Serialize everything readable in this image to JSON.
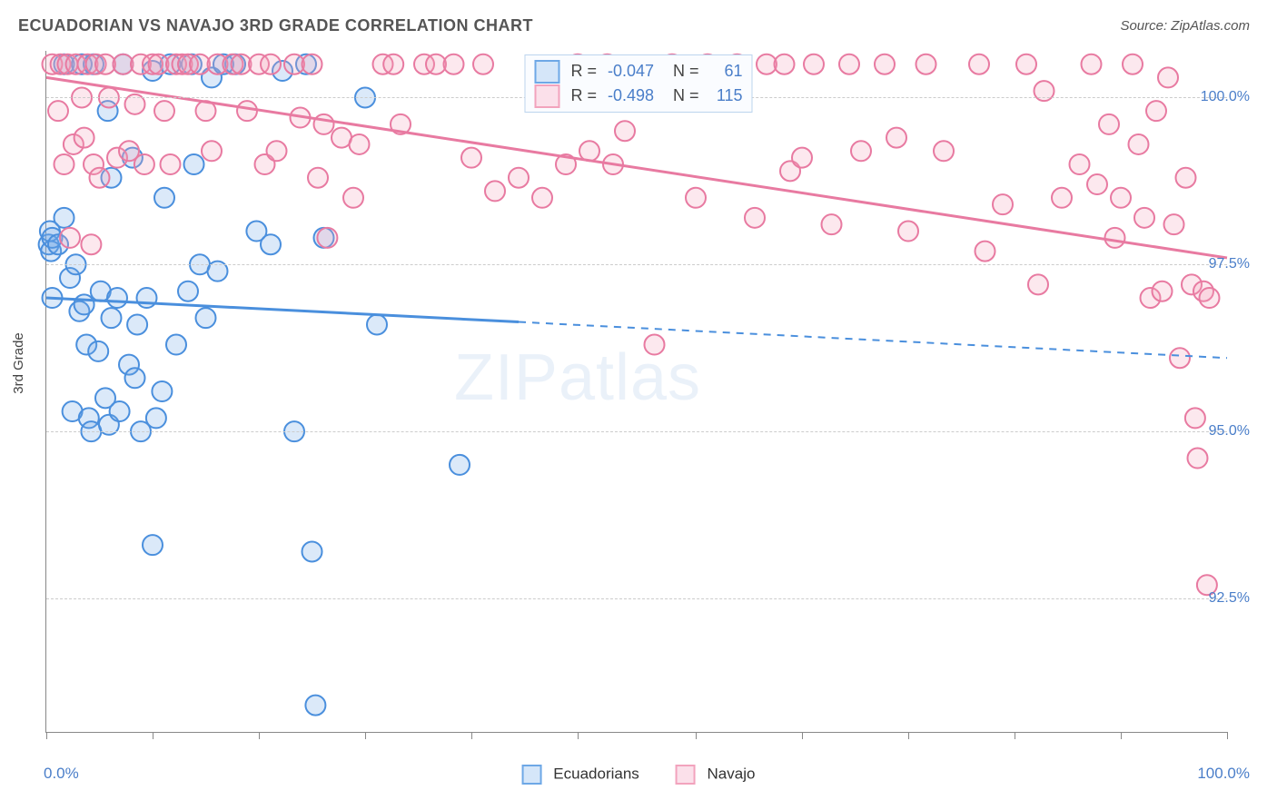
{
  "title": "ECUADORIAN VS NAVAJO 3RD GRADE CORRELATION CHART",
  "source": "Source: ZipAtlas.com",
  "watermark": {
    "part1": "ZIP",
    "part2": "atlas"
  },
  "chart": {
    "type": "scatter",
    "ylabel": "3rd Grade",
    "xlim": [
      0,
      100
    ],
    "ylim": [
      90.5,
      100.7
    ],
    "background_color": "#ffffff",
    "grid_color": "#cccccc",
    "axis_color": "#888888",
    "ytick_labels": [
      "92.5%",
      "95.0%",
      "97.5%",
      "100.0%"
    ],
    "ytick_values": [
      92.5,
      95.0,
      97.5,
      100.0
    ],
    "ytick_color": "#4a7ec9",
    "xtick_positions": [
      0,
      9,
      18,
      27,
      36,
      45,
      55,
      64,
      73,
      82,
      91,
      100
    ],
    "xtick_label_left": "0.0%",
    "xtick_label_right": "100.0%",
    "marker_radius": 11,
    "marker_stroke_width": 2,
    "marker_fill_opacity": 0.25,
    "series": [
      {
        "name": "Ecuadorians",
        "color": "#6ea8e6",
        "stroke": "#4a8fdd",
        "R": "-0.047",
        "N": "61",
        "trend": {
          "x1": 0,
          "y1": 97.0,
          "x2": 100,
          "y2": 96.1,
          "data_xmax": 40,
          "line_width": 3
        },
        "points": [
          [
            0.2,
            97.8
          ],
          [
            0.3,
            98.0
          ],
          [
            0.4,
            97.7
          ],
          [
            0.5,
            97.9
          ],
          [
            0.5,
            97.0
          ],
          [
            1.0,
            97.8
          ],
          [
            1.5,
            98.2
          ],
          [
            1.5,
            100.5
          ],
          [
            2.0,
            97.3
          ],
          [
            2.2,
            95.3
          ],
          [
            2.5,
            97.5
          ],
          [
            2.8,
            96.8
          ],
          [
            3.0,
            100.5
          ],
          [
            3.2,
            96.9
          ],
          [
            3.4,
            96.3
          ],
          [
            3.6,
            95.2
          ],
          [
            3.8,
            95.0
          ],
          [
            4.0,
            100.5
          ],
          [
            4.4,
            96.2
          ],
          [
            4.6,
            97.1
          ],
          [
            5.0,
            95.5
          ],
          [
            5.2,
            99.8
          ],
          [
            5.3,
            95.1
          ],
          [
            5.5,
            96.7
          ],
          [
            5.5,
            98.8
          ],
          [
            6.0,
            97.0
          ],
          [
            6.2,
            95.3
          ],
          [
            6.5,
            100.5
          ],
          [
            7.0,
            96.0
          ],
          [
            7.3,
            99.1
          ],
          [
            7.5,
            95.8
          ],
          [
            7.7,
            96.6
          ],
          [
            8.0,
            95.0
          ],
          [
            8.5,
            97.0
          ],
          [
            9.0,
            93.3
          ],
          [
            9.0,
            100.4
          ],
          [
            9.3,
            95.2
          ],
          [
            9.8,
            95.6
          ],
          [
            10.0,
            98.5
          ],
          [
            10.5,
            100.5
          ],
          [
            11.0,
            96.3
          ],
          [
            12.0,
            97.1
          ],
          [
            12.5,
            99.0
          ],
          [
            12.3,
            100.5
          ],
          [
            13.0,
            97.5
          ],
          [
            13.5,
            96.7
          ],
          [
            14.0,
            100.3
          ],
          [
            14.5,
            97.4
          ],
          [
            15.0,
            100.5
          ],
          [
            16.0,
            100.5
          ],
          [
            17.8,
            98.0
          ],
          [
            19.0,
            97.8
          ],
          [
            20.0,
            100.4
          ],
          [
            21.0,
            95.0
          ],
          [
            22.0,
            100.5
          ],
          [
            22.5,
            93.2
          ],
          [
            22.8,
            90.9
          ],
          [
            23.5,
            97.9
          ],
          [
            27.0,
            100.0
          ],
          [
            28.0,
            96.6
          ],
          [
            35.0,
            94.5
          ]
        ]
      },
      {
        "name": "Navajo",
        "color": "#f2a3bd",
        "stroke": "#e87aa1",
        "R": "-0.498",
        "N": "115",
        "trend": {
          "x1": 0,
          "y1": 100.3,
          "x2": 100,
          "y2": 97.6,
          "data_xmax": 100,
          "line_width": 3
        },
        "points": [
          [
            0.5,
            100.5
          ],
          [
            1.0,
            99.8
          ],
          [
            1.2,
            100.5
          ],
          [
            1.5,
            99.0
          ],
          [
            1.8,
            100.5
          ],
          [
            2.0,
            97.9
          ],
          [
            2.3,
            99.3
          ],
          [
            2.5,
            100.5
          ],
          [
            3.0,
            100.0
          ],
          [
            3.2,
            99.4
          ],
          [
            3.5,
            100.5
          ],
          [
            3.8,
            97.8
          ],
          [
            4.0,
            99.0
          ],
          [
            4.2,
            100.5
          ],
          [
            4.5,
            98.8
          ],
          [
            5.0,
            100.5
          ],
          [
            5.3,
            100.0
          ],
          [
            6.0,
            99.1
          ],
          [
            6.5,
            100.5
          ],
          [
            7.0,
            99.2
          ],
          [
            7.5,
            99.9
          ],
          [
            8.0,
            100.5
          ],
          [
            8.3,
            99.0
          ],
          [
            9.0,
            100.5
          ],
          [
            9.5,
            100.5
          ],
          [
            10.0,
            99.8
          ],
          [
            10.5,
            99.0
          ],
          [
            11.0,
            100.5
          ],
          [
            11.5,
            100.5
          ],
          [
            12.0,
            100.5
          ],
          [
            13.0,
            100.5
          ],
          [
            13.5,
            99.8
          ],
          [
            14.0,
            99.2
          ],
          [
            14.5,
            100.5
          ],
          [
            15.8,
            100.5
          ],
          [
            16.5,
            100.5
          ],
          [
            17.0,
            99.8
          ],
          [
            18.0,
            100.5
          ],
          [
            18.5,
            99.0
          ],
          [
            19.0,
            100.5
          ],
          [
            19.5,
            99.2
          ],
          [
            21.0,
            100.5
          ],
          [
            21.5,
            99.7
          ],
          [
            22.5,
            100.5
          ],
          [
            23.0,
            98.8
          ],
          [
            23.5,
            99.6
          ],
          [
            23.8,
            97.9
          ],
          [
            25.0,
            99.4
          ],
          [
            26.0,
            98.5
          ],
          [
            26.5,
            99.3
          ],
          [
            28.5,
            100.5
          ],
          [
            29.4,
            100.5
          ],
          [
            30.0,
            99.6
          ],
          [
            32.0,
            100.5
          ],
          [
            33.0,
            100.5
          ],
          [
            34.5,
            100.5
          ],
          [
            36.0,
            99.1
          ],
          [
            37.0,
            100.5
          ],
          [
            38.0,
            98.6
          ],
          [
            40.0,
            98.8
          ],
          [
            42.0,
            98.5
          ],
          [
            44.0,
            99.0
          ],
          [
            45.0,
            100.5
          ],
          [
            46.0,
            99.2
          ],
          [
            47.5,
            100.5
          ],
          [
            48.0,
            99.0
          ],
          [
            49.0,
            99.5
          ],
          [
            51.5,
            96.3
          ],
          [
            53.0,
            100.5
          ],
          [
            55.0,
            98.5
          ],
          [
            56.0,
            100.5
          ],
          [
            58.5,
            100.5
          ],
          [
            60.0,
            98.2
          ],
          [
            61.0,
            100.5
          ],
          [
            62.5,
            100.5
          ],
          [
            63.0,
            98.9
          ],
          [
            64.0,
            99.1
          ],
          [
            65.0,
            100.5
          ],
          [
            66.5,
            98.1
          ],
          [
            68.0,
            100.5
          ],
          [
            69.0,
            99.2
          ],
          [
            71.0,
            100.5
          ],
          [
            72.0,
            99.4
          ],
          [
            73.0,
            98.0
          ],
          [
            74.5,
            100.5
          ],
          [
            76.0,
            99.2
          ],
          [
            79.0,
            100.5
          ],
          [
            79.5,
            97.7
          ],
          [
            81.0,
            98.4
          ],
          [
            83.0,
            100.5
          ],
          [
            84.0,
            97.2
          ],
          [
            84.5,
            100.1
          ],
          [
            86.0,
            98.5
          ],
          [
            87.5,
            99.0
          ],
          [
            88.5,
            100.5
          ],
          [
            89.0,
            98.7
          ],
          [
            90.0,
            99.6
          ],
          [
            90.5,
            97.9
          ],
          [
            91.0,
            98.5
          ],
          [
            92.0,
            100.5
          ],
          [
            92.5,
            99.3
          ],
          [
            93.0,
            98.2
          ],
          [
            93.5,
            97.0
          ],
          [
            94.0,
            99.8
          ],
          [
            94.5,
            97.1
          ],
          [
            95.0,
            100.3
          ],
          [
            95.5,
            98.1
          ],
          [
            96.0,
            96.1
          ],
          [
            96.5,
            98.8
          ],
          [
            97.0,
            97.2
          ],
          [
            97.3,
            95.2
          ],
          [
            97.5,
            94.6
          ],
          [
            98.0,
            97.1
          ],
          [
            98.3,
            92.7
          ],
          [
            98.5,
            97.0
          ]
        ]
      }
    ]
  },
  "legend_bottom": {
    "items": [
      {
        "label": "Ecuadorians",
        "fill": "#d5e6f9",
        "stroke": "#6ea8e6"
      },
      {
        "label": "Navajo",
        "fill": "#fbe0ea",
        "stroke": "#f2a3bd"
      }
    ]
  },
  "legend_box": {
    "bg": "#fafcff",
    "border": "#bcd4ee",
    "value_color": "#4a7ec9",
    "rows": [
      {
        "fill": "#d5e6f9",
        "stroke": "#6ea8e6",
        "R": "-0.047",
        "N": "61"
      },
      {
        "fill": "#fbe0ea",
        "stroke": "#f2a3bd",
        "R": "-0.498",
        "N": "115"
      }
    ],
    "r_label": "R =",
    "n_label": "N ="
  }
}
